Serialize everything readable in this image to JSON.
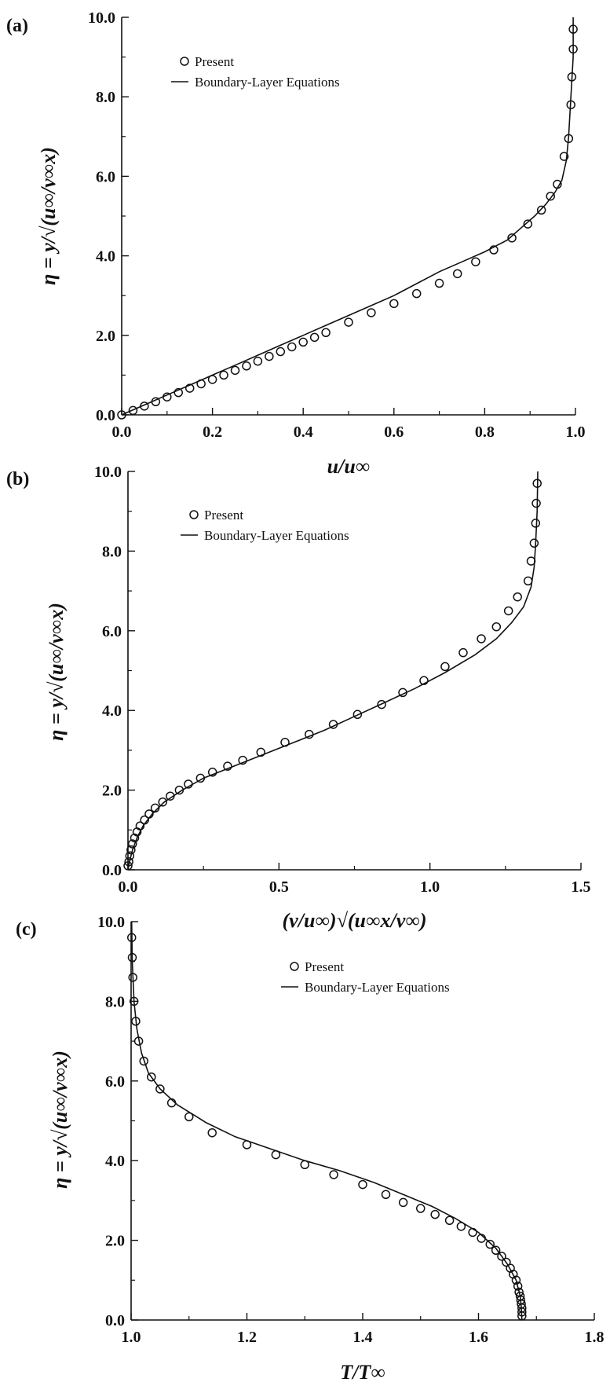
{
  "chart_data": [
    {
      "type": "line",
      "panel_label": "(a)",
      "xlabel": "u/u∞",
      "ylabel": "η  =  y/√(u∞/ν∞x)",
      "xlim": [
        0.0,
        1.0
      ],
      "ylim": [
        0.0,
        10.0
      ],
      "xticks": [
        "0.0",
        "0.2",
        "0.4",
        "0.6",
        "0.8",
        "1.0"
      ],
      "yticks": [
        "0.0",
        "2.0",
        "4.0",
        "6.0",
        "8.0",
        "10.0"
      ],
      "legend": {
        "placement": "top-left",
        "entries": [
          "Present",
          "Boundary-Layer Equations"
        ]
      },
      "series": [
        {
          "name": "Boundary-Layer Equations",
          "style": "line",
          "points": [
            [
              0,
              0
            ],
            [
              0.05,
              0.25
            ],
            [
              0.1,
              0.5
            ],
            [
              0.15,
              0.75
            ],
            [
              0.2,
              1.0
            ],
            [
              0.25,
              1.25
            ],
            [
              0.3,
              1.5
            ],
            [
              0.35,
              1.75
            ],
            [
              0.4,
              2.0
            ],
            [
              0.45,
              2.25
            ],
            [
              0.5,
              2.5
            ],
            [
              0.55,
              2.75
            ],
            [
              0.6,
              3.0
            ],
            [
              0.65,
              3.3
            ],
            [
              0.7,
              3.6
            ],
            [
              0.75,
              3.85
            ],
            [
              0.8,
              4.1
            ],
            [
              0.85,
              4.4
            ],
            [
              0.88,
              4.7
            ],
            [
              0.91,
              5.0
            ],
            [
              0.935,
              5.3
            ],
            [
              0.955,
              5.6
            ],
            [
              0.97,
              5.9
            ],
            [
              0.98,
              6.4
            ],
            [
              0.985,
              7.0
            ],
            [
              0.99,
              8.0
            ],
            [
              0.995,
              9.0
            ],
            [
              0.995,
              10.0
            ]
          ]
        },
        {
          "name": "Present",
          "style": "markers",
          "points": [
            [
              0.0,
              0.0
            ],
            [
              0.025,
              0.11
            ],
            [
              0.05,
              0.22
            ],
            [
              0.075,
              0.33
            ],
            [
              0.1,
              0.45
            ],
            [
              0.125,
              0.56
            ],
            [
              0.15,
              0.67
            ],
            [
              0.175,
              0.78
            ],
            [
              0.2,
              0.89
            ],
            [
              0.225,
              1.0
            ],
            [
              0.25,
              1.12
            ],
            [
              0.275,
              1.23
            ],
            [
              0.3,
              1.35
            ],
            [
              0.325,
              1.47
            ],
            [
              0.35,
              1.59
            ],
            [
              0.375,
              1.71
            ],
            [
              0.4,
              1.83
            ],
            [
              0.425,
              1.95
            ],
            [
              0.45,
              2.07
            ],
            [
              0.5,
              2.33
            ],
            [
              0.55,
              2.57
            ],
            [
              0.6,
              2.8
            ],
            [
              0.65,
              3.05
            ],
            [
              0.7,
              3.31
            ],
            [
              0.74,
              3.55
            ],
            [
              0.78,
              3.85
            ],
            [
              0.82,
              4.15
            ],
            [
              0.86,
              4.45
            ],
            [
              0.895,
              4.8
            ],
            [
              0.925,
              5.15
            ],
            [
              0.945,
              5.5
            ],
            [
              0.96,
              5.8
            ],
            [
              0.975,
              6.5
            ],
            [
              0.985,
              6.95
            ],
            [
              0.99,
              7.8
            ],
            [
              0.992,
              8.5
            ],
            [
              0.995,
              9.2
            ],
            [
              0.995,
              9.7
            ]
          ]
        }
      ]
    },
    {
      "type": "line",
      "panel_label": "(b)",
      "xlabel": "(v/u∞)√(u∞x/ν∞)",
      "ylabel": "η  =  y/√(u∞/ν∞x)",
      "xlim": [
        0.0,
        1.5
      ],
      "ylim": [
        0.0,
        10.0
      ],
      "xticks": [
        "0.0",
        "0.5",
        "1.0",
        "1.5"
      ],
      "yticks": [
        "0.0",
        "2.0",
        "4.0",
        "6.0",
        "8.0",
        "10.0"
      ],
      "legend": {
        "placement": "top-left",
        "entries": [
          "Present",
          "Boundary-Layer Equations"
        ]
      },
      "series": [
        {
          "name": "Boundary-Layer Equations",
          "style": "line",
          "points": [
            [
              0,
              0
            ],
            [
              0.005,
              0.2
            ],
            [
              0.015,
              0.5
            ],
            [
              0.03,
              0.8
            ],
            [
              0.05,
              1.1
            ],
            [
              0.08,
              1.4
            ],
            [
              0.12,
              1.7
            ],
            [
              0.18,
              2.0
            ],
            [
              0.25,
              2.3
            ],
            [
              0.35,
              2.6
            ],
            [
              0.45,
              2.9
            ],
            [
              0.55,
              3.2
            ],
            [
              0.65,
              3.5
            ],
            [
              0.75,
              3.85
            ],
            [
              0.85,
              4.2
            ],
            [
              0.95,
              4.55
            ],
            [
              1.05,
              4.95
            ],
            [
              1.15,
              5.4
            ],
            [
              1.22,
              5.8
            ],
            [
              1.27,
              6.2
            ],
            [
              1.31,
              6.6
            ],
            [
              1.335,
              7.1
            ],
            [
              1.345,
              7.6
            ],
            [
              1.35,
              8.2
            ],
            [
              1.355,
              9.0
            ],
            [
              1.357,
              10.0
            ]
          ]
        },
        {
          "name": "Present",
          "style": "markers",
          "points": [
            [
              0.0,
              0.1
            ],
            [
              0.003,
              0.2
            ],
            [
              0.006,
              0.35
            ],
            [
              0.01,
              0.5
            ],
            [
              0.015,
              0.65
            ],
            [
              0.022,
              0.8
            ],
            [
              0.03,
              0.95
            ],
            [
              0.04,
              1.1
            ],
            [
              0.055,
              1.25
            ],
            [
              0.07,
              1.4
            ],
            [
              0.09,
              1.55
            ],
            [
              0.115,
              1.7
            ],
            [
              0.14,
              1.85
            ],
            [
              0.17,
              2.0
            ],
            [
              0.2,
              2.15
            ],
            [
              0.24,
              2.3
            ],
            [
              0.28,
              2.45
            ],
            [
              0.33,
              2.6
            ],
            [
              0.38,
              2.75
            ],
            [
              0.44,
              2.95
            ],
            [
              0.52,
              3.2
            ],
            [
              0.6,
              3.4
            ],
            [
              0.68,
              3.65
            ],
            [
              0.76,
              3.9
            ],
            [
              0.84,
              4.15
            ],
            [
              0.91,
              4.45
            ],
            [
              0.98,
              4.75
            ],
            [
              1.05,
              5.1
            ],
            [
              1.11,
              5.45
            ],
            [
              1.17,
              5.8
            ],
            [
              1.22,
              6.1
            ],
            [
              1.26,
              6.5
            ],
            [
              1.29,
              6.85
            ],
            [
              1.325,
              7.25
            ],
            [
              1.335,
              7.75
            ],
            [
              1.345,
              8.2
            ],
            [
              1.35,
              8.7
            ],
            [
              1.352,
              9.2
            ],
            [
              1.355,
              9.7
            ]
          ]
        }
      ]
    },
    {
      "type": "line",
      "panel_label": "(c)",
      "xlabel": "T/T∞",
      "ylabel": "η  =  y/√(u∞/ν∞x)",
      "xlim": [
        1.0,
        1.8
      ],
      "ylim": [
        0.0,
        10.0
      ],
      "xticks": [
        "1.0",
        "1.2",
        "1.4",
        "1.6",
        "1.8"
      ],
      "yticks": [
        "0.0",
        "2.0",
        "4.0",
        "6.0",
        "8.0",
        "10.0"
      ],
      "legend": {
        "placement": "top-right",
        "entries": [
          "Present",
          "Boundary-Layer Equations"
        ]
      },
      "series": [
        {
          "name": "Boundary-Layer Equations",
          "style": "line",
          "points": [
            [
              1.675,
              0.0
            ],
            [
              1.674,
              0.3
            ],
            [
              1.672,
              0.6
            ],
            [
              1.665,
              1.0
            ],
            [
              1.65,
              1.4
            ],
            [
              1.63,
              1.8
            ],
            [
              1.6,
              2.2
            ],
            [
              1.56,
              2.55
            ],
            [
              1.52,
              2.85
            ],
            [
              1.47,
              3.15
            ],
            [
              1.42,
              3.45
            ],
            [
              1.36,
              3.75
            ],
            [
              1.3,
              4.0
            ],
            [
              1.24,
              4.3
            ],
            [
              1.18,
              4.6
            ],
            [
              1.13,
              4.95
            ],
            [
              1.08,
              5.4
            ],
            [
              1.05,
              5.8
            ],
            [
              1.03,
              6.2
            ],
            [
              1.018,
              6.7
            ],
            [
              1.01,
              7.3
            ],
            [
              1.005,
              8.0
            ],
            [
              1.002,
              9.0
            ],
            [
              1.001,
              10.0
            ]
          ]
        },
        {
          "name": "Present",
          "style": "markers",
          "points": [
            [
              1.675,
              0.1
            ],
            [
              1.675,
              0.2
            ],
            [
              1.675,
              0.3
            ],
            [
              1.674,
              0.4
            ],
            [
              1.673,
              0.5
            ],
            [
              1.672,
              0.6
            ],
            [
              1.67,
              0.7
            ],
            [
              1.668,
              0.85
            ],
            [
              1.665,
              1.0
            ],
            [
              1.66,
              1.15
            ],
            [
              1.655,
              1.3
            ],
            [
              1.648,
              1.45
            ],
            [
              1.64,
              1.6
            ],
            [
              1.63,
              1.75
            ],
            [
              1.62,
              1.9
            ],
            [
              1.605,
              2.05
            ],
            [
              1.59,
              2.2
            ],
            [
              1.57,
              2.35
            ],
            [
              1.55,
              2.5
            ],
            [
              1.525,
              2.65
            ],
            [
              1.5,
              2.8
            ],
            [
              1.47,
              2.95
            ],
            [
              1.44,
              3.15
            ],
            [
              1.4,
              3.4
            ],
            [
              1.35,
              3.65
            ],
            [
              1.3,
              3.9
            ],
            [
              1.25,
              4.15
            ],
            [
              1.2,
              4.4
            ],
            [
              1.14,
              4.7
            ],
            [
              1.1,
              5.1
            ],
            [
              1.07,
              5.45
            ],
            [
              1.05,
              5.8
            ],
            [
              1.035,
              6.1
            ],
            [
              1.022,
              6.5
            ],
            [
              1.013,
              7.0
            ],
            [
              1.008,
              7.5
            ],
            [
              1.005,
              8.0
            ],
            [
              1.003,
              8.6
            ],
            [
              1.002,
              9.1
            ],
            [
              1.001,
              9.6
            ]
          ]
        }
      ]
    }
  ]
}
